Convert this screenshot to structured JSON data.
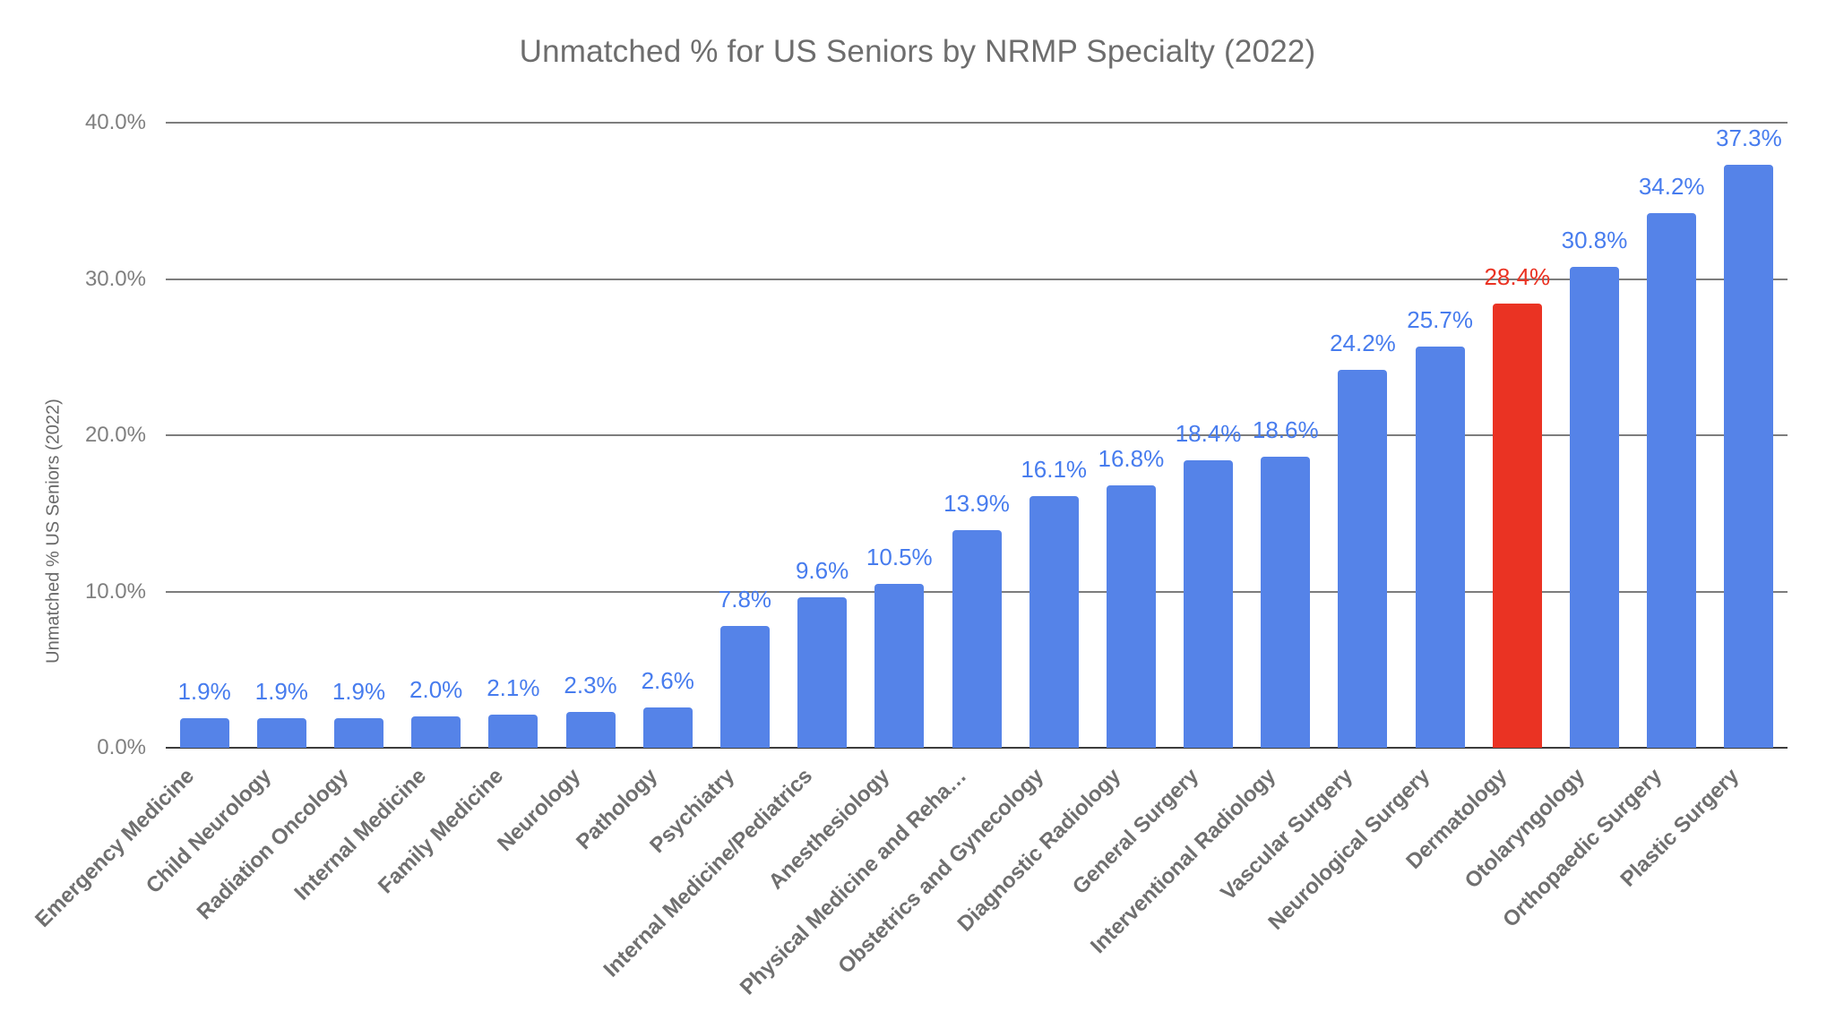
{
  "chart_data": {
    "type": "bar",
    "title": "Unmatched % for US Seniors by NRMP Specialty (2022)",
    "ylabel": "Unmatched % US Seniors (2022)",
    "xlabel": "",
    "ylim": [
      0,
      40
    ],
    "grid": "horizontal",
    "legend_position": "none",
    "yticks": [
      {
        "value": 0,
        "label": "0.0%"
      },
      {
        "value": 10,
        "label": "10.0%"
      },
      {
        "value": 20,
        "label": "20.0%"
      },
      {
        "value": 30,
        "label": "30.0%"
      },
      {
        "value": 40,
        "label": "40.0%"
      }
    ],
    "categories": [
      "Emergency Medicine",
      "Child Neurology",
      "Radiation Oncology",
      "Internal Medicine",
      "Family Medicine",
      "Neurology",
      "Pathology",
      "Psychiatry",
      "Internal Medicine/Pediatrics",
      "Anesthesiology",
      "Physical Medicine and Reha…",
      "Obstetrics and Gynecology",
      "Diagnostic Radiology",
      "General Surgery",
      "Interventional Radiology",
      "Vascular Surgery",
      "Neurological Surgery",
      "Dermatology",
      "Otolaryngology",
      "Orthopaedic Surgery",
      "Plastic Surgery"
    ],
    "values": [
      1.9,
      1.9,
      1.9,
      2.0,
      2.1,
      2.3,
      2.6,
      7.8,
      9.6,
      10.5,
      13.9,
      16.1,
      16.8,
      18.4,
      18.6,
      24.2,
      25.7,
      28.4,
      30.8,
      34.2,
      37.3
    ],
    "value_labels": [
      "1.9%",
      "1.9%",
      "1.9%",
      "2.0%",
      "2.1%",
      "2.3%",
      "2.6%",
      "7.8%",
      "9.6%",
      "10.5%",
      "13.9%",
      "16.1%",
      "16.8%",
      "18.4%",
      "18.6%",
      "24.2%",
      "25.7%",
      "28.4%",
      "30.8%",
      "34.2%",
      "37.3%"
    ],
    "highlight_index": 17,
    "highlight_category": "Dermatology",
    "colors": {
      "bar": "#5583e8",
      "highlight_bar": "#ea3323",
      "value_label": "#477cee",
      "highlight_value_label": "#ea3323",
      "gridline": "#7d7d7d",
      "baseline": "#3c3c3c",
      "axis_text": "#7f7f7f",
      "category_text": "#6f6f6f",
      "title_text": "#6d6d6d"
    }
  }
}
